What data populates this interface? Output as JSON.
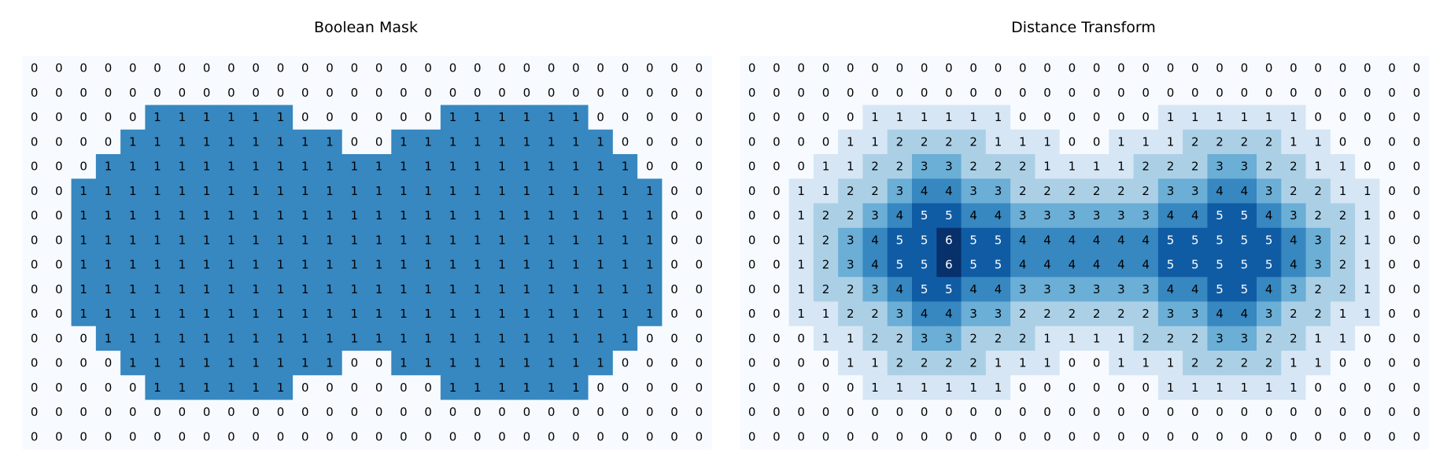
{
  "chart_data": [
    {
      "type": "heatmap",
      "title": "Boolean Mask",
      "colormap": "Blues",
      "vmin": 0,
      "vmax": 1.5,
      "text_dark": "#000000",
      "text_light": "#ffffff",
      "values": [
        [
          0,
          0,
          0,
          0,
          0,
          0,
          0,
          0,
          0,
          0,
          0,
          0,
          0,
          0,
          0,
          0,
          0,
          0,
          0,
          0,
          0,
          0,
          0,
          0,
          0,
          0,
          0,
          0
        ],
        [
          0,
          0,
          0,
          0,
          0,
          0,
          0,
          0,
          0,
          0,
          0,
          0,
          0,
          0,
          0,
          0,
          0,
          0,
          0,
          0,
          0,
          0,
          0,
          0,
          0,
          0,
          0,
          0
        ],
        [
          0,
          0,
          0,
          0,
          0,
          1,
          1,
          1,
          1,
          1,
          1,
          0,
          0,
          0,
          0,
          0,
          0,
          1,
          1,
          1,
          1,
          1,
          1,
          0,
          0,
          0,
          0,
          0
        ],
        [
          0,
          0,
          0,
          0,
          1,
          1,
          1,
          1,
          1,
          1,
          1,
          1,
          1,
          0,
          0,
          1,
          1,
          1,
          1,
          1,
          1,
          1,
          1,
          1,
          0,
          0,
          0,
          0
        ],
        [
          0,
          0,
          0,
          1,
          1,
          1,
          1,
          1,
          1,
          1,
          1,
          1,
          1,
          1,
          1,
          1,
          1,
          1,
          1,
          1,
          1,
          1,
          1,
          1,
          1,
          0,
          0,
          0
        ],
        [
          0,
          0,
          1,
          1,
          1,
          1,
          1,
          1,
          1,
          1,
          1,
          1,
          1,
          1,
          1,
          1,
          1,
          1,
          1,
          1,
          1,
          1,
          1,
          1,
          1,
          1,
          0,
          0
        ],
        [
          0,
          0,
          1,
          1,
          1,
          1,
          1,
          1,
          1,
          1,
          1,
          1,
          1,
          1,
          1,
          1,
          1,
          1,
          1,
          1,
          1,
          1,
          1,
          1,
          1,
          1,
          0,
          0
        ],
        [
          0,
          0,
          1,
          1,
          1,
          1,
          1,
          1,
          1,
          1,
          1,
          1,
          1,
          1,
          1,
          1,
          1,
          1,
          1,
          1,
          1,
          1,
          1,
          1,
          1,
          1,
          0,
          0
        ],
        [
          0,
          0,
          1,
          1,
          1,
          1,
          1,
          1,
          1,
          1,
          1,
          1,
          1,
          1,
          1,
          1,
          1,
          1,
          1,
          1,
          1,
          1,
          1,
          1,
          1,
          1,
          0,
          0
        ],
        [
          0,
          0,
          1,
          1,
          1,
          1,
          1,
          1,
          1,
          1,
          1,
          1,
          1,
          1,
          1,
          1,
          1,
          1,
          1,
          1,
          1,
          1,
          1,
          1,
          1,
          1,
          0,
          0
        ],
        [
          0,
          0,
          1,
          1,
          1,
          1,
          1,
          1,
          1,
          1,
          1,
          1,
          1,
          1,
          1,
          1,
          1,
          1,
          1,
          1,
          1,
          1,
          1,
          1,
          1,
          1,
          0,
          0
        ],
        [
          0,
          0,
          0,
          1,
          1,
          1,
          1,
          1,
          1,
          1,
          1,
          1,
          1,
          1,
          1,
          1,
          1,
          1,
          1,
          1,
          1,
          1,
          1,
          1,
          1,
          0,
          0,
          0
        ],
        [
          0,
          0,
          0,
          0,
          1,
          1,
          1,
          1,
          1,
          1,
          1,
          1,
          1,
          0,
          0,
          1,
          1,
          1,
          1,
          1,
          1,
          1,
          1,
          1,
          0,
          0,
          0,
          0
        ],
        [
          0,
          0,
          0,
          0,
          0,
          1,
          1,
          1,
          1,
          1,
          1,
          0,
          0,
          0,
          0,
          0,
          0,
          1,
          1,
          1,
          1,
          1,
          1,
          0,
          0,
          0,
          0,
          0
        ],
        [
          0,
          0,
          0,
          0,
          0,
          0,
          0,
          0,
          0,
          0,
          0,
          0,
          0,
          0,
          0,
          0,
          0,
          0,
          0,
          0,
          0,
          0,
          0,
          0,
          0,
          0,
          0,
          0
        ],
        [
          0,
          0,
          0,
          0,
          0,
          0,
          0,
          0,
          0,
          0,
          0,
          0,
          0,
          0,
          0,
          0,
          0,
          0,
          0,
          0,
          0,
          0,
          0,
          0,
          0,
          0,
          0,
          0
        ]
      ]
    },
    {
      "type": "heatmap",
      "title": "Distance Transform",
      "colormap": "Blues",
      "vmin": 0,
      "vmax": 6,
      "text_dark": "#000000",
      "text_light": "#ffffff",
      "values": [
        [
          0,
          0,
          0,
          0,
          0,
          0,
          0,
          0,
          0,
          0,
          0,
          0,
          0,
          0,
          0,
          0,
          0,
          0,
          0,
          0,
          0,
          0,
          0,
          0,
          0,
          0,
          0,
          0
        ],
        [
          0,
          0,
          0,
          0,
          0,
          0,
          0,
          0,
          0,
          0,
          0,
          0,
          0,
          0,
          0,
          0,
          0,
          0,
          0,
          0,
          0,
          0,
          0,
          0,
          0,
          0,
          0,
          0
        ],
        [
          0,
          0,
          0,
          0,
          0,
          1,
          1,
          1,
          1,
          1,
          1,
          0,
          0,
          0,
          0,
          0,
          0,
          1,
          1,
          1,
          1,
          1,
          1,
          0,
          0,
          0,
          0,
          0
        ],
        [
          0,
          0,
          0,
          0,
          1,
          1,
          2,
          2,
          2,
          2,
          1,
          1,
          1,
          0,
          0,
          1,
          1,
          1,
          2,
          2,
          2,
          2,
          1,
          1,
          0,
          0,
          0,
          0
        ],
        [
          0,
          0,
          0,
          1,
          1,
          2,
          2,
          3,
          3,
          2,
          2,
          2,
          1,
          1,
          1,
          1,
          2,
          2,
          2,
          3,
          3,
          2,
          2,
          1,
          1,
          0,
          0,
          0
        ],
        [
          0,
          0,
          1,
          1,
          2,
          2,
          3,
          4,
          4,
          3,
          3,
          2,
          2,
          2,
          2,
          2,
          2,
          3,
          3,
          4,
          4,
          3,
          2,
          2,
          1,
          1,
          0,
          0
        ],
        [
          0,
          0,
          1,
          2,
          2,
          3,
          4,
          5,
          5,
          4,
          4,
          3,
          3,
          3,
          3,
          3,
          3,
          4,
          4,
          5,
          5,
          4,
          3,
          2,
          2,
          1,
          0,
          0
        ],
        [
          0,
          0,
          1,
          2,
          3,
          4,
          5,
          5,
          6,
          5,
          5,
          4,
          4,
          4,
          4,
          4,
          4,
          5,
          5,
          5,
          5,
          5,
          4,
          3,
          2,
          1,
          0,
          0
        ],
        [
          0,
          0,
          1,
          2,
          3,
          4,
          5,
          5,
          6,
          5,
          5,
          4,
          4,
          4,
          4,
          4,
          4,
          5,
          5,
          5,
          5,
          5,
          4,
          3,
          2,
          1,
          0,
          0
        ],
        [
          0,
          0,
          1,
          2,
          2,
          3,
          4,
          5,
          5,
          4,
          4,
          3,
          3,
          3,
          3,
          3,
          3,
          4,
          4,
          5,
          5,
          4,
          3,
          2,
          2,
          1,
          0,
          0
        ],
        [
          0,
          0,
          1,
          1,
          2,
          2,
          3,
          4,
          4,
          3,
          3,
          2,
          2,
          2,
          2,
          2,
          2,
          3,
          3,
          4,
          4,
          3,
          2,
          2,
          1,
          1,
          0,
          0
        ],
        [
          0,
          0,
          0,
          1,
          1,
          2,
          2,
          3,
          3,
          2,
          2,
          2,
          1,
          1,
          1,
          1,
          2,
          2,
          2,
          3,
          3,
          2,
          2,
          1,
          1,
          0,
          0,
          0
        ],
        [
          0,
          0,
          0,
          0,
          1,
          1,
          2,
          2,
          2,
          2,
          1,
          1,
          1,
          0,
          0,
          1,
          1,
          1,
          2,
          2,
          2,
          2,
          1,
          1,
          0,
          0,
          0,
          0
        ],
        [
          0,
          0,
          0,
          0,
          0,
          1,
          1,
          1,
          1,
          1,
          1,
          0,
          0,
          0,
          0,
          0,
          0,
          1,
          1,
          1,
          1,
          1,
          1,
          0,
          0,
          0,
          0,
          0
        ],
        [
          0,
          0,
          0,
          0,
          0,
          0,
          0,
          0,
          0,
          0,
          0,
          0,
          0,
          0,
          0,
          0,
          0,
          0,
          0,
          0,
          0,
          0,
          0,
          0,
          0,
          0,
          0,
          0
        ],
        [
          0,
          0,
          0,
          0,
          0,
          0,
          0,
          0,
          0,
          0,
          0,
          0,
          0,
          0,
          0,
          0,
          0,
          0,
          0,
          0,
          0,
          0,
          0,
          0,
          0,
          0,
          0,
          0
        ]
      ]
    }
  ]
}
